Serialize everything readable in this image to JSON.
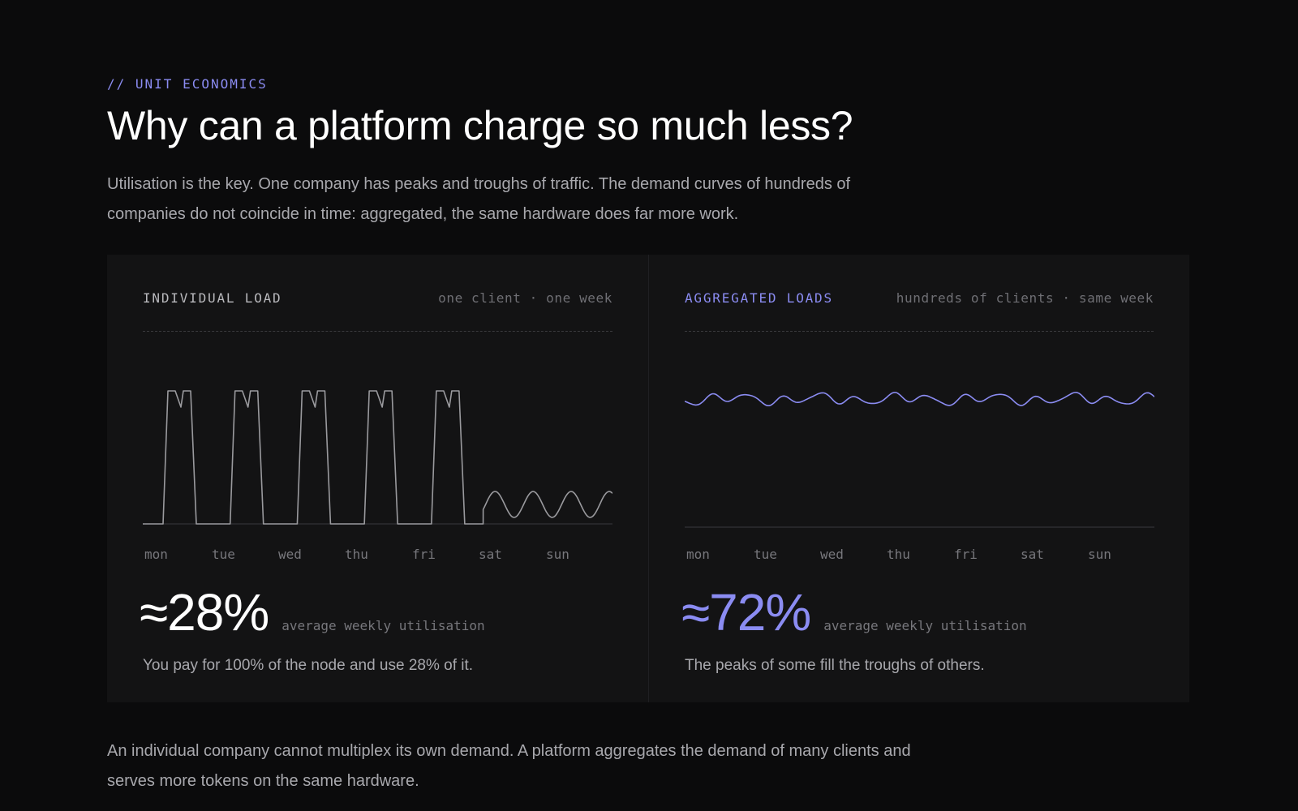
{
  "section": {
    "eyebrow": "// UNIT ECONOMICS",
    "title": "Why can a platform charge so much less?",
    "lead": "Utilisation is the key. One company has peaks and troughs of traffic. The demand curves of hundreds of companies do not coincide in time: aggregated, the same hardware does far more work."
  },
  "colors": {
    "background": "#0b0b0c",
    "panel": "#131314",
    "accent": "#8b8cf2",
    "individual_line": "#9a9a9e"
  },
  "panels": [
    {
      "title": "INDIVIDUAL LOAD",
      "meta": "one client · one week",
      "days": [
        "mon",
        "tue",
        "wed",
        "thu",
        "fri",
        "sat",
        "sun"
      ],
      "stat_value": "≈28%",
      "stat_label": "average weekly utilisation",
      "note": "You pay for 100% of the node and use 28% of it."
    },
    {
      "title": "AGGREGATED LOADS",
      "meta": "hundreds of clients · same week",
      "days": [
        "mon",
        "tue",
        "wed",
        "thu",
        "fri",
        "sat",
        "sun"
      ],
      "stat_value": "≈72%",
      "stat_label": "average weekly utilisation",
      "note": "The peaks of some fill the troughs of others."
    }
  ],
  "chart_data": [
    {
      "type": "line",
      "categories": [
        "mon",
        "tue",
        "wed",
        "thu",
        "fri",
        "sat",
        "sun"
      ],
      "level": 28,
      "ylim": [
        0,
        100
      ],
      "pattern": "weekday plateau peaks, low weekend waves"
    },
    {
      "type": "line",
      "categories": [
        "mon",
        "tue",
        "wed",
        "thu",
        "fri",
        "sat",
        "sun"
      ],
      "level": 72,
      "ylim": [
        0,
        100
      ],
      "pattern": "flat wavy aggregated load"
    }
  ],
  "footer": {
    "text": "An individual company cannot multiplex its own demand. A platform aggregates the demand of many clients and serves more tokens on the same hardware."
  }
}
